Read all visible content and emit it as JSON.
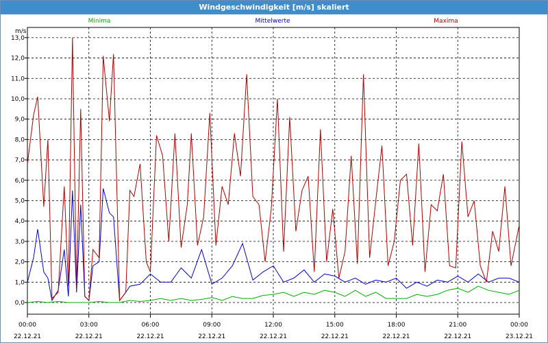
{
  "window": {
    "title": "Windgeschwindigkeit [m/s] skaliert"
  },
  "chart_data": {
    "type": "line",
    "ylabel": "m/s",
    "ylim": [
      0,
      13.5
    ],
    "yticks": [
      "0,0",
      "1,0",
      "2,0",
      "3,0",
      "4,0",
      "5,0",
      "6,0",
      "7,0",
      "8,0",
      "9,0",
      "10,0",
      "11,0",
      "12,0",
      "13,0"
    ],
    "ytick_values": [
      0,
      1,
      2,
      3,
      4,
      5,
      6,
      7,
      8,
      9,
      10,
      11,
      12,
      13
    ],
    "xticks": [
      {
        "time": "00:00",
        "date": "22.12.21"
      },
      {
        "time": "03:00",
        "date": "22.12.21"
      },
      {
        "time": "06:00",
        "date": "22.12.21"
      },
      {
        "time": "09:00",
        "date": "22.12.21"
      },
      {
        "time": "12:00",
        "date": "22.12.21"
      },
      {
        "time": "15:00",
        "date": "22.12.21"
      },
      {
        "time": "18:00",
        "date": "22.12.21"
      },
      {
        "time": "21:00",
        "date": "22.12.21"
      },
      {
        "time": "00:00",
        "date": "23.12.21"
      }
    ],
    "x_hours_range": [
      0,
      24
    ],
    "grid": true,
    "legend_position": "top",
    "series": [
      {
        "name": "Minima",
        "color": "#00aa00",
        "x": [
          0,
          0.5,
          1,
          1.5,
          2,
          2.5,
          3,
          3.5,
          4,
          4.5,
          5,
          5.5,
          6,
          6.5,
          7,
          7.5,
          8,
          8.5,
          9,
          9.5,
          10,
          10.5,
          11,
          11.5,
          12,
          12.5,
          13,
          13.5,
          14,
          14.5,
          15,
          15.5,
          16,
          16.5,
          17,
          17.5,
          18,
          18.5,
          19,
          19.5,
          20,
          20.5,
          21,
          21.5,
          22,
          22.5,
          23,
          23.5,
          24
        ],
        "values": [
          0.0,
          0.05,
          0.0,
          0.05,
          0.0,
          0.0,
          0.0,
          0.05,
          0.0,
          0.0,
          0.1,
          0.05,
          0.1,
          0.2,
          0.1,
          0.2,
          0.1,
          0.15,
          0.25,
          0.1,
          0.3,
          0.2,
          0.2,
          0.35,
          0.4,
          0.5,
          0.3,
          0.5,
          0.4,
          0.6,
          0.5,
          0.3,
          0.6,
          0.3,
          0.5,
          0.2,
          0.2,
          0.2,
          0.4,
          0.3,
          0.4,
          0.6,
          0.7,
          0.5,
          0.8,
          0.6,
          0.5,
          0.4,
          0.6
        ]
      },
      {
        "name": "Mittelwerte",
        "color": "#0000cc",
        "x": [
          0,
          0.3,
          0.5,
          0.8,
          1,
          1.2,
          1.5,
          1.8,
          2,
          2.2,
          2.4,
          2.6,
          2.8,
          3,
          3.2,
          3.5,
          3.7,
          4,
          4.2,
          4.5,
          4.8,
          5,
          5.5,
          6,
          6.5,
          7,
          7.5,
          8,
          8.5,
          9,
          9.5,
          10,
          10.5,
          11,
          11.5,
          12,
          12.5,
          13,
          13.5,
          14,
          14.5,
          15,
          15.5,
          16,
          16.5,
          17,
          17.5,
          18,
          18.5,
          19,
          19.5,
          20,
          20.5,
          21,
          21.5,
          22,
          22.5,
          23,
          23.5,
          24
        ],
        "values": [
          1.0,
          2.2,
          3.6,
          1.5,
          1.2,
          0.1,
          0.6,
          2.6,
          0.3,
          5.5,
          0.5,
          4.8,
          0.3,
          0.1,
          1.8,
          2.0,
          5.6,
          4.4,
          4.2,
          0.1,
          0.5,
          0.8,
          0.9,
          1.4,
          1.0,
          1.0,
          1.7,
          1.2,
          2.6,
          0.9,
          1.2,
          1.8,
          2.9,
          1.1,
          1.5,
          1.8,
          1.0,
          1.2,
          1.6,
          1.0,
          1.4,
          1.3,
          1.0,
          1.2,
          0.9,
          1.1,
          1.0,
          1.2,
          0.7,
          1.0,
          0.8,
          1.1,
          1.0,
          1.3,
          1.0,
          1.4,
          1.0,
          1.2,
          1.2,
          1.0
        ]
      },
      {
        "name": "Maxima",
        "color": "#aa0000",
        "x": [
          0,
          0.3,
          0.5,
          0.8,
          1,
          1.2,
          1.5,
          1.8,
          2,
          2.2,
          2.4,
          2.6,
          2.8,
          3,
          3.2,
          3.5,
          3.7,
          4,
          4.2,
          4.5,
          4.8,
          5,
          5.2,
          5.5,
          5.8,
          6,
          6.3,
          6.6,
          6.9,
          7.2,
          7.5,
          7.8,
          8,
          8.3,
          8.6,
          8.9,
          9.2,
          9.5,
          9.8,
          10.1,
          10.4,
          10.7,
          11,
          11.3,
          11.6,
          11.9,
          12.2,
          12.5,
          12.8,
          13.1,
          13.4,
          13.7,
          14,
          14.3,
          14.6,
          14.9,
          15.2,
          15.5,
          15.8,
          16.1,
          16.4,
          16.7,
          17,
          17.3,
          17.6,
          17.9,
          18.2,
          18.5,
          18.8,
          19.1,
          19.4,
          19.7,
          20,
          20.3,
          20.6,
          20.9,
          21.2,
          21.5,
          21.8,
          22.1,
          22.4,
          22.7,
          23,
          23.3,
          23.6,
          24
        ],
        "values": [
          6.8,
          9.2,
          10.1,
          4.7,
          8.0,
          0.2,
          0.5,
          5.7,
          0.8,
          13.0,
          0.6,
          9.5,
          0.3,
          0.1,
          2.6,
          2.2,
          12.1,
          8.9,
          12.2,
          0.1,
          0.5,
          5.5,
          5.2,
          6.8,
          2.0,
          1.5,
          8.2,
          7.2,
          3.0,
          8.3,
          2.7,
          4.8,
          8.3,
          2.8,
          4.2,
          9.3,
          2.8,
          5.7,
          4.8,
          8.3,
          6.2,
          11.2,
          5.2,
          4.8,
          2.0,
          4.6,
          10.0,
          2.5,
          9.1,
          3.5,
          5.5,
          6.2,
          1.5,
          8.5,
          2.0,
          4.6,
          1.2,
          2.5,
          7.2,
          1.9,
          11.2,
          2.2,
          5.0,
          7.7,
          1.8,
          3.0,
          6.0,
          6.3,
          2.8,
          7.8,
          1.5,
          4.8,
          4.5,
          6.3,
          1.8,
          1.7,
          7.9,
          4.2,
          5.0,
          1.8,
          1.0,
          3.5,
          2.5,
          5.7,
          1.8,
          3.8
        ]
      }
    ]
  }
}
